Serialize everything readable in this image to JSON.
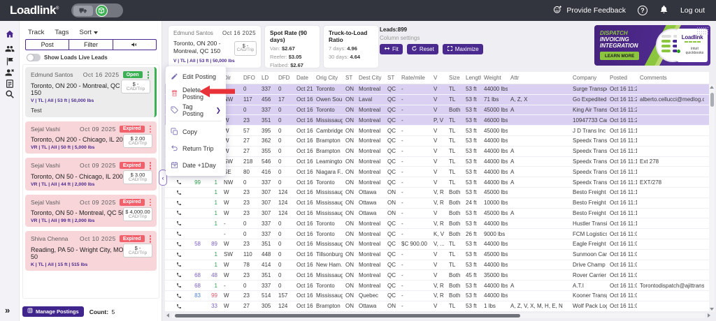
{
  "theme": {
    "topbar": "#32343e",
    "purple": "#4b2a8f",
    "green": "#3cb054",
    "red": "#f2606b",
    "pink-bg": "#f8d5d9",
    "row-highlight": "#d9d0f2",
    "ad-green": "#8cc63e",
    "arrow-red": "#e8323a"
  },
  "topbar": {
    "logo": "Loadlink",
    "provide_feedback": "Provide Feedback",
    "logout": "Log out",
    "icons": [
      "truck-icon",
      "package-icon",
      "feedback-smiley-icon",
      "help-icon",
      "bell-icon"
    ]
  },
  "sidebar": {
    "icons": [
      "home-icon",
      "team-icon",
      "flag-icon",
      "remove-user-icon",
      "notes-icon",
      "search-icon"
    ],
    "expand_glyph": "»"
  },
  "leads_panel": {
    "tabs": [
      "Track",
      "Tags",
      "Sort"
    ],
    "actions": {
      "post": "Post",
      "filter": "Filter"
    },
    "toggle_label": "Show Loads Live Leads",
    "cards": [
      {
        "name": "Edmund Santos",
        "date": "Oct 16 2025",
        "status": "Open",
        "state": "open",
        "route": "Toronto, ON 200  -  Montreal, QC 150",
        "specs": "V | TL | All | 53 ft | 50,000 lbs",
        "rate": "$ -",
        "rate_unit": "CAD/Trip",
        "note": "Test"
      },
      {
        "name": "Sejal Vashi",
        "date": "Oct 09 2025",
        "status": "Expired",
        "state": "expired",
        "route": "Toronto, ON 200  -  Chicago, IL 200",
        "specs": "VR | TL | All | 50 ft | 5,000 lbs",
        "rate": "$ 2.00",
        "rate_unit": "CAD/Trip",
        "note": ""
      },
      {
        "name": "Sejal Vashi",
        "date": "Oct 09 2025",
        "status": "Expired",
        "state": "expired",
        "route": "Toronto, ON 50  -  Chicago, IL 200",
        "specs": "VR | TL | All | 44 ft | 2,000 lbs",
        "rate": "$ 3.00",
        "rate_unit": "CAD/Trip",
        "note": ""
      },
      {
        "name": "Sejal Vashi",
        "date": "Oct 09 2025",
        "status": "Expired",
        "state": "expired",
        "route": "Toronto, ON 50  -  Montreal, QC 50",
        "specs": "VR | TL | All | 99 ft | 2,000 lbs",
        "rate": "$ 4,000.00",
        "rate_unit": "CAD/Trip",
        "note": ""
      },
      {
        "name": "Shiva Chenna",
        "date": "Oct 10 2025",
        "status": "Expired",
        "state": "expired",
        "route": "Reading, PA 50  -  Wright City, MO 50",
        "specs": "K | TL | All | 15 ft | 515 lbs",
        "rate": "$ -",
        "rate_unit": "CAD/Trip",
        "note": ""
      }
    ],
    "manage_button": "Manage Postings",
    "count_label": "Count:",
    "count_value": "5"
  },
  "summary": {
    "selected_lead": {
      "name": "Edmund Santos",
      "date": "Oct 16  2025",
      "route_line1": "Toronto, ON 200 -",
      "route_line2": "Montreal, QC 150",
      "rate": "$ -",
      "rate_unit": "CAD/Trip",
      "specs": "V | TL | All | 53 ft | 50,000 lbs"
    },
    "spot_rate": {
      "title": "Spot Rate (90 days)",
      "rows": [
        {
          "label": "Van:",
          "value": "$2.67"
        },
        {
          "label": "Reefer:",
          "value": "$3.05"
        },
        {
          "label": "Flatbed:",
          "value": "$2.67"
        }
      ]
    },
    "ratio": {
      "title": "Truck-to-Load Ratio",
      "rows": [
        {
          "label": "7 days:",
          "value": "4.96"
        },
        {
          "label": "30 days:",
          "value": "4.64"
        }
      ]
    },
    "leads_label": "Leads:899",
    "column_settings": "Column settings",
    "buttons": {
      "fit": "Fit",
      "reset": "Reset",
      "maximize": "Maximize"
    }
  },
  "ad": {
    "line1": "DISPATCH",
    "line2": "INVOICING",
    "line3": "INTEGRATION",
    "cta": "LEARN MORE",
    "brand": "Loadlink",
    "partner": "intuit quickbooks"
  },
  "context_menu": {
    "items": [
      {
        "label": "Edit Posting",
        "icon": "pencil-icon"
      },
      {
        "label": "Delete Posting",
        "icon": "trash-icon"
      },
      {
        "label": "Tag Posting",
        "icon": "tag-icon",
        "submenu": true
      },
      {
        "divider": true
      },
      {
        "label": "Copy",
        "icon": "copy-icon"
      },
      {
        "label": "Return Trip",
        "icon": "return-arrow-icon"
      },
      {
        "label": "Date +1Day",
        "icon": "calendar-icon"
      }
    ]
  },
  "table": {
    "headers": [
      "",
      "",
      "",
      "Dir",
      "DFO",
      "LD",
      "DFD",
      "Date",
      "Orig City",
      "ST",
      "Dest City",
      "ST",
      "Rate/mile",
      "V",
      "Size",
      "Length",
      "Weight",
      "Attr",
      "Company",
      "Posted",
      "Comments"
    ],
    "rows": [
      {
        "sel": true,
        "phone": true,
        "c": [
          "",
          "",
          "-",
          "0",
          "337",
          "0",
          "Oct 21",
          "Toronto",
          "ON",
          "Montreal",
          "QC",
          "-",
          "V",
          "TL",
          "53 ft",
          "44000 lbs",
          "",
          "Surge Transpor...",
          "Oct 16 11:2...",
          ""
        ]
      },
      {
        "sel": true,
        "phone": true,
        "c": [
          "",
          "",
          "NW",
          "117",
          "456",
          "17",
          "Oct 16",
          "Owen Sou...",
          "ON",
          "Laval",
          "QC",
          "-",
          "V",
          "TL",
          "53 ft",
          "71 lbs",
          "A, Z, X",
          "Go Expedited ...",
          "Oct 16 11:2...",
          "alberto.cellucci@medlog.com"
        ]
      },
      {
        "sel": true,
        "phone": true,
        "c": [
          "",
          "",
          "-",
          "0",
          "337",
          "0",
          "Oct 16",
          "Toronto",
          "ON",
          "Montreal",
          "QC",
          "-",
          "V",
          "Both",
          "53 ft",
          "45000 lbs",
          "A",
          "King Air Transp...",
          "Oct 16 11:2...",
          ""
        ]
      },
      {
        "sel": true,
        "phone": true,
        "c": [
          "",
          "",
          "W",
          "23",
          "351",
          "0",
          "Oct 16",
          "Mississauga",
          "ON",
          "Montreal",
          "QC",
          "-",
          "P, V",
          "TL",
          "53 ft",
          "46000 lbs",
          "",
          "10947733 Can...",
          "Oct 16 11:2...",
          ""
        ]
      },
      {
        "phone": true,
        "c": [
          "",
          "",
          "W",
          "57",
          "395",
          "0",
          "Oct 16",
          "Cambridge",
          "ON",
          "Montreal",
          "QC",
          "-",
          "V",
          "TL",
          "53 ft",
          "45000 lbs",
          "",
          "J D Trans Inc",
          "Oct 16 11:1...",
          ""
        ]
      },
      {
        "phone": true,
        "c": [
          "",
          "",
          "W",
          "27",
          "362",
          "0",
          "Oct 16",
          "Brampton",
          "ON",
          "Montreal",
          "QC",
          "-",
          "V",
          "TL",
          "53 ft",
          "44000 lbs",
          "",
          "Speedx Transp...",
          "Oct 16 11:1...",
          ""
        ]
      },
      {
        "phone": true,
        "c": [
          "",
          "",
          "W",
          "27",
          "355",
          "0",
          "Oct 16",
          "Brampton",
          "ON",
          "Montreal",
          "QC",
          "-",
          "V",
          "TL",
          "53 ft",
          "44000 lbs",
          "A",
          "Speedx Transp...",
          "Oct 16 11:1...",
          ""
        ]
      },
      {
        "phone": true,
        "c": [
          "",
          "",
          "SW",
          "218",
          "546",
          "0",
          "Oct 16",
          "Leamington",
          "ON",
          "Montreal",
          "QC",
          "-",
          "V",
          "TL",
          "53 ft",
          "44000 lbs",
          "A",
          "Speedx Transp...",
          "Oct 16 11:1...",
          "Ext 278"
        ]
      },
      {
        "phone": true,
        "t1": "green",
        "t2": "green",
        "c": [
          "99",
          "1",
          "SE",
          "80",
          "416",
          "0",
          "Oct 16",
          "Niagara F...",
          "ON",
          "Montreal",
          "QC",
          "-",
          "V",
          "TL",
          "53 ft",
          "44000 lbs",
          "A",
          "Speedx Transp...",
          "Oct 16 11:1...",
          ""
        ]
      },
      {
        "phone": true,
        "t1": "green",
        "t2": "green",
        "c": [
          "99",
          "1",
          "NW",
          "0",
          "337",
          "0",
          "Oct 16",
          "Toronto",
          "ON",
          "Montreal",
          "QC",
          "-",
          "V",
          "TL",
          "53 ft",
          "44000 lbs",
          "A",
          "Speedx Transp...",
          "Oct 16 11:1...",
          "EXT/278"
        ]
      },
      {
        "phone": true,
        "t2": "green",
        "c": [
          "",
          "1",
          "W",
          "23",
          "307",
          "124",
          "Oct 16",
          "Mississauga",
          "ON",
          "Ottawa",
          "ON",
          "-",
          "V, R",
          "Both",
          "53 ft",
          "45000 lbs",
          "",
          "Besto Freight I...",
          "Oct 16 11:1...",
          ""
        ]
      },
      {
        "phone": true,
        "t2": "green",
        "c": [
          "",
          "1",
          "W",
          "23",
          "307",
          "124",
          "Oct 16",
          "Mississauga",
          "ON",
          "Ottawa",
          "ON",
          "-",
          "V, R",
          "Both",
          "24 ft",
          "10000 lbs",
          "",
          "Besto Freight I...",
          "Oct 16 11:1...",
          ""
        ]
      },
      {
        "phone": true,
        "t2": "green",
        "c": [
          "",
          "1",
          "W",
          "23",
          "307",
          "124",
          "Oct 16",
          "Mississauga",
          "ON",
          "Ottawa",
          "ON",
          "-",
          "V",
          "Both",
          "53 ft",
          "45000 lbs",
          "A",
          "Besto Freight I...",
          "Oct 16 11:1...",
          ""
        ]
      },
      {
        "phone": true,
        "t2": "green",
        "c": [
          "",
          "1",
          "-",
          "0",
          "337",
          "0",
          "Oct 16",
          "Toronto",
          "ON",
          "Montreal",
          "QC",
          "-",
          "V, R",
          "Both",
          "53 ft",
          "44000 lbs",
          "",
          "Hustler Transit ...",
          "Oct 16 11:1...",
          ""
        ]
      },
      {
        "phone": true,
        "c": [
          "",
          "",
          "-",
          "0",
          "337",
          "0",
          "Oct 16",
          "Toronto",
          "ON",
          "Montreal",
          "QC",
          "-",
          "K, V",
          "Both",
          "26 ft",
          "9000 lbs",
          "",
          "FCM Logistics I...",
          "Oct 16 11:0...",
          ""
        ]
      },
      {
        "phone": true,
        "t1": "purple",
        "t2": "purple",
        "c": [
          "58",
          "89",
          "W",
          "23",
          "351",
          "0",
          "Oct 16",
          "Mississauga",
          "ON",
          "Montreal",
          "QC",
          "$C   900.00",
          "V, ...",
          "TL",
          "53 ft",
          "44000 lbs",
          "",
          "Eagle Freight S...",
          "Oct 16 11:0...",
          ""
        ]
      },
      {
        "phone": true,
        "t2": "green",
        "c": [
          "",
          "1",
          "SW",
          "110",
          "448",
          "0",
          "Oct 16",
          "Tillsonburg",
          "ON",
          "Montreal",
          "QC",
          "-",
          "V",
          "TL",
          "53 ft",
          "45000 lbs",
          "",
          "Sunmoon Carrier",
          "Oct 16 11:0...",
          ""
        ]
      },
      {
        "phone": true,
        "t2": "green",
        "c": [
          "",
          "1",
          "W",
          "78",
          "414",
          "0",
          "Oct 16",
          "New Ham...",
          "ON",
          "Montreal",
          "QC",
          "-",
          "V",
          "TL",
          "53 ft",
          "44000 lbs",
          "",
          "Drive Champ Inc.",
          "Oct 16 11:0...",
          ""
        ]
      },
      {
        "phone": true,
        "t1": "purple",
        "t2": "purple",
        "c": [
          "68",
          "48",
          "W",
          "23",
          "351",
          "0",
          "Oct 16",
          "Mississauga",
          "ON",
          "Montreal",
          "QC",
          "-",
          "V",
          "Both",
          "45 ft",
          "35000 lbs",
          "",
          "Rover Carrier Ltd",
          "Oct 16 11:0...",
          ""
        ]
      },
      {
        "phone": true,
        "t1": "purple",
        "t2": "green",
        "c": [
          "68",
          "1",
          "-",
          "0",
          "337",
          "0",
          "Oct 16",
          "Toronto",
          "ON",
          "Montreal",
          "QC",
          "-",
          "V, R",
          "Both",
          "53 ft",
          "44000 lbs",
          "A",
          "A.T.I",
          "Oct 16 11:0...",
          "Torontodispatch@ajittranspor"
        ]
      },
      {
        "phone": true,
        "t1": "blue",
        "t2": "red",
        "c": [
          "83",
          "99",
          "W",
          "23",
          "514",
          "157",
          "Oct 16",
          "Mississauga",
          "ON",
          "Quebec",
          "QC",
          "-",
          "V, R",
          "Both",
          "53 ft",
          "44000 lbs",
          "",
          "Kooner Transp...",
          "Oct 16 11:0...",
          ""
        ]
      },
      {
        "phone": true,
        "t2": "purple",
        "c": [
          "",
          "33",
          "W",
          "27",
          "305",
          "124",
          "Oct 16",
          "Brampton",
          "ON",
          "Ottawa",
          "ON",
          "-",
          "V",
          "TL",
          "53 ft",
          "1 lbs",
          "A, Z, V, X, M, H, E, N",
          "Wolf Pack Logi...",
          "Oct 16 11:0...",
          ""
        ]
      }
    ]
  }
}
